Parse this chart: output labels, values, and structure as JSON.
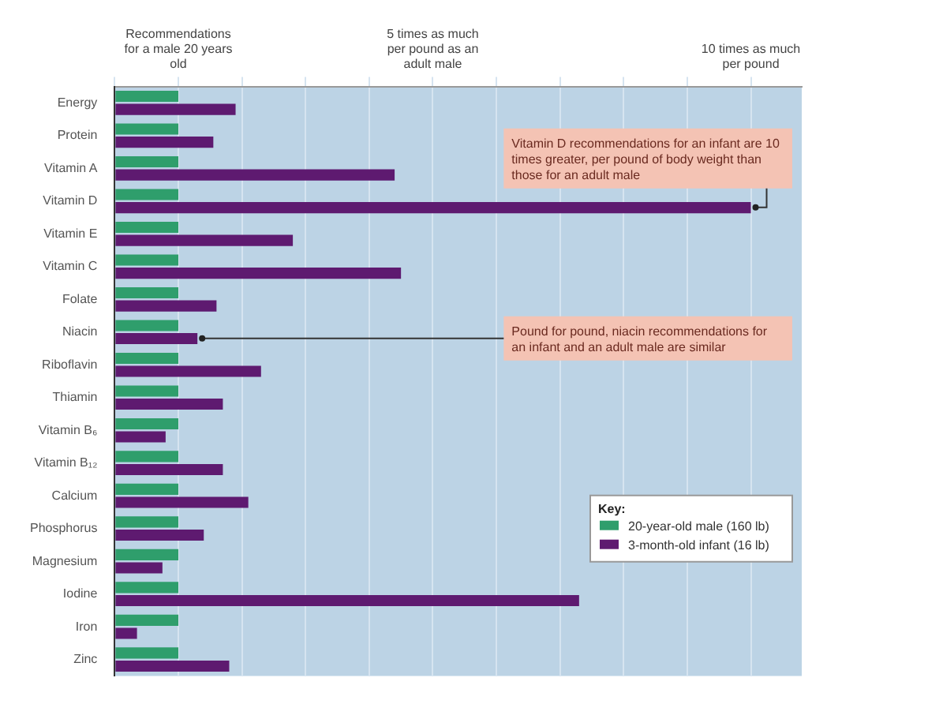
{
  "chart_data": {
    "type": "bar",
    "orientation": "horizontal",
    "categories": [
      "Energy",
      "Protein",
      "Vitamin A",
      "Vitamin D",
      "Vitamin E",
      "Vitamin C",
      "Folate",
      "Niacin",
      "Riboflavin",
      "Thiamin",
      "Vitamin B₆",
      "Vitamin B₁₂",
      "Calcium",
      "Phosphorus",
      "Magnesium",
      "Iodine",
      "Iron",
      "Zinc"
    ],
    "series": [
      {
        "name": "20-year-old male (160 lb)",
        "color": "#2f9e6c",
        "values": [
          1,
          1,
          1,
          1,
          1,
          1,
          1,
          1,
          1,
          1,
          1,
          1,
          1,
          1,
          1,
          1,
          1,
          1
        ]
      },
      {
        "name": "3-month-old infant (16 lb)",
        "color": "#5e1a70",
        "values": [
          1.9,
          1.55,
          4.4,
          10,
          2.8,
          4.5,
          1.6,
          1.3,
          2.3,
          1.7,
          0.8,
          1.7,
          2.1,
          1.4,
          0.75,
          7.3,
          0.35,
          1.8
        ]
      }
    ],
    "xlim": [
      0,
      10.8
    ],
    "xticks": [
      {
        "value": 0,
        "label": null
      },
      {
        "value": 1,
        "label": "Recommendations for a male 20 years old"
      },
      {
        "value": 2,
        "label": null
      },
      {
        "value": 3,
        "label": null
      },
      {
        "value": 4,
        "label": null
      },
      {
        "value": 5,
        "label": "5 times as much per pound as an adult male"
      },
      {
        "value": 6,
        "label": null
      },
      {
        "value": 7,
        "label": null
      },
      {
        "value": 8,
        "label": null
      },
      {
        "value": 9,
        "label": null
      },
      {
        "value": 10,
        "label": "10 times as much per pound"
      }
    ],
    "grid": "x",
    "legend": "bottom right",
    "legend_title": "Key:",
    "annotations": [
      {
        "text": "Vitamin D recommendations for an infant are 10 times greater, per pound of body weight than those for an adult male",
        "x": 10,
        "y": "Vitamin D"
      },
      {
        "text": "Pound for pound, niacin recommendations for an infant and an adult male are similar",
        "x": 1.3,
        "y": "Niacin"
      }
    ]
  }
}
